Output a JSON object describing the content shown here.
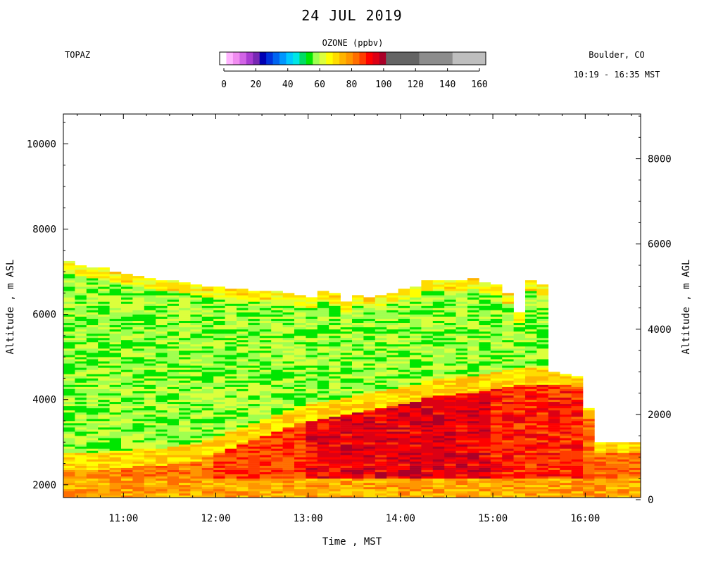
{
  "header": {
    "title": "24 JUL 2019",
    "instrument": "TOPAZ",
    "location": "Boulder, CO",
    "time_span": "10:19 - 16:35 MST"
  },
  "colorbar": {
    "title": "OZONE (ppbv)",
    "tick_labels": [
      "0",
      "20",
      "40",
      "60",
      "80",
      "100",
      "120",
      "140",
      "160"
    ],
    "tick_values": [
      0,
      20,
      40,
      60,
      80,
      100,
      120,
      140,
      160
    ],
    "bins": [
      {
        "from": 0,
        "to": 4,
        "color": "#ffffff"
      },
      {
        "from": 4,
        "to": 8,
        "color": "#ffb4ff"
      },
      {
        "from": 8,
        "to": 12,
        "color": "#f08cf0"
      },
      {
        "from": 12,
        "to": 16,
        "color": "#d264e6"
      },
      {
        "from": 16,
        "to": 20,
        "color": "#aa3cd2"
      },
      {
        "from": 20,
        "to": 24,
        "color": "#7828b4"
      },
      {
        "from": 24,
        "to": 28,
        "color": "#0000b4"
      },
      {
        "from": 28,
        "to": 32,
        "color": "#0032dc"
      },
      {
        "from": 32,
        "to": 36,
        "color": "#0064f0"
      },
      {
        "from": 36,
        "to": 40,
        "color": "#0096ff"
      },
      {
        "from": 40,
        "to": 44,
        "color": "#00c8ff"
      },
      {
        "from": 44,
        "to": 48,
        "color": "#00e6e6"
      },
      {
        "from": 48,
        "to": 52,
        "color": "#00dc64"
      },
      {
        "from": 52,
        "to": 56,
        "color": "#00e600"
      },
      {
        "from": 56,
        "to": 60,
        "color": "#a0ff50"
      },
      {
        "from": 60,
        "to": 64,
        "color": "#dcff3c"
      },
      {
        "from": 64,
        "to": 68,
        "color": "#ffff00"
      },
      {
        "from": 68,
        "to": 72,
        "color": "#ffdc00"
      },
      {
        "from": 72,
        "to": 76,
        "color": "#ffb400"
      },
      {
        "from": 76,
        "to": 80,
        "color": "#ff9600"
      },
      {
        "from": 80,
        "to": 84,
        "color": "#ff6e00"
      },
      {
        "from": 84,
        "to": 88,
        "color": "#ff3c00"
      },
      {
        "from": 88,
        "to": 92,
        "color": "#ff0000"
      },
      {
        "from": 92,
        "to": 96,
        "color": "#dc0014"
      },
      {
        "from": 96,
        "to": 100,
        "color": "#aa0028"
      },
      {
        "from": 100,
        "to": 120,
        "color": "#646464"
      },
      {
        "from": 120,
        "to": 140,
        "color": "#8c8c8c"
      },
      {
        "from": 140,
        "to": 160,
        "color": "#bebebe"
      }
    ]
  },
  "chart_data": {
    "type": "heatmap",
    "variable": "ozone",
    "units": "ppbv",
    "xlabel": "Time , MST",
    "ylabel": "Altitude , m ASL",
    "y2label": "Altitude , m AGL",
    "xlim": [
      10.35,
      16.6
    ],
    "ylim": [
      1700,
      10700
    ],
    "y2_offset": 1650,
    "x_ticks": [
      11,
      12,
      13,
      14,
      15,
      16
    ],
    "x_tick_labels": [
      "11:00",
      "12:00",
      "13:00",
      "14:00",
      "15:00",
      "16:00"
    ],
    "y_ticks": [
      2000,
      4000,
      6000,
      8000,
      10000
    ],
    "y_tick_labels": [
      "2000",
      "4000",
      "6000",
      "8000",
      "10000"
    ],
    "y2_ticks": [
      0,
      2000,
      4000,
      6000,
      8000
    ],
    "y2_tick_labels": [
      "0",
      "2000",
      "4000",
      "6000",
      "8000"
    ],
    "profile_start": 10.35,
    "profile_step": 0.125,
    "profile_top_m_asl": [
      7250,
      7150,
      7100,
      7100,
      7000,
      6950,
      6900,
      6850,
      6800,
      6800,
      6750,
      6700,
      6650,
      6650,
      6600,
      6600,
      6550,
      6550,
      6550,
      6500,
      6450,
      6400,
      6550,
      6500,
      6300,
      6450,
      6400,
      6450,
      6500,
      6600,
      6650,
      6800,
      6800,
      6800,
      6800,
      6850,
      6750,
      6700,
      6500,
      6050,
      6800,
      6700,
      4650,
      4600,
      4550,
      3800,
      3000,
      3000,
      3000,
      3000
    ],
    "boundary_layer_top_m_asl": [
      2600,
      2600,
      2600,
      2600,
      2650,
      2650,
      2700,
      2700,
      2700,
      2750,
      2800,
      2800,
      2900,
      3000,
      3100,
      3200,
      3300,
      3400,
      3500,
      3600,
      3700,
      3750,
      3800,
      3850,
      3900,
      3950,
      4000,
      4050,
      4100,
      4150,
      4200,
      4300,
      4350,
      4350,
      4400,
      4400,
      4450,
      4500,
      4550,
      4600,
      4600,
      4600,
      4600,
      4600,
      4550,
      3800,
      3000,
      3000,
      3000,
      3000
    ],
    "free_troposphere_ppbv": 58,
    "boundary_layer_ppbv_by_hour": [
      {
        "time": 10.5,
        "ppbv": 78
      },
      {
        "time": 11.5,
        "ppbv": 80
      },
      {
        "time": 12.5,
        "ppbv": 86
      },
      {
        "time": 13.5,
        "ppbv": 92
      },
      {
        "time": 14.5,
        "ppbv": 93
      },
      {
        "time": 15.5,
        "ppbv": 88
      },
      {
        "time": 16.5,
        "ppbv": 82
      }
    ],
    "surface_layer_ppbv": 76
  }
}
